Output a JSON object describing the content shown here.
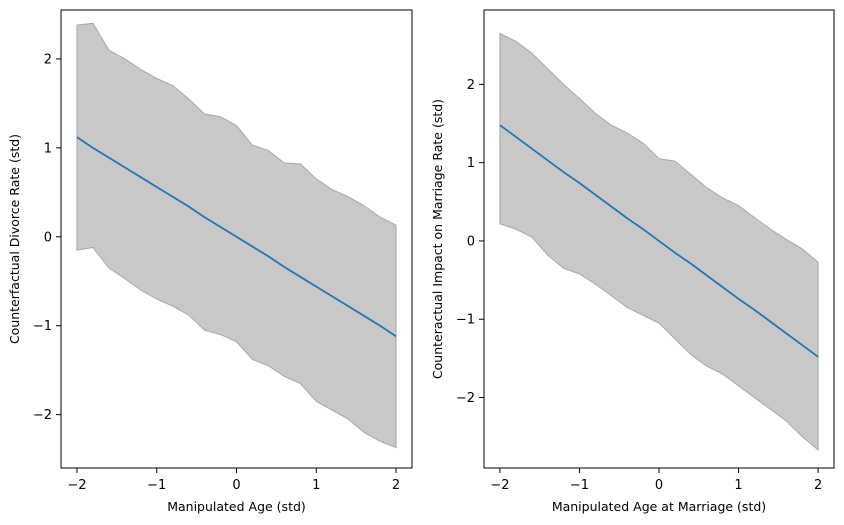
{
  "chart_data": [
    {
      "type": "line",
      "xlabel": "Manipulated Age (std)",
      "ylabel": "Counterfactual Divorce Rate (std)",
      "xlim": [
        -2.2,
        2.2
      ],
      "ylim": [
        -2.6,
        2.55
      ],
      "xticks": [
        -2,
        -1,
        0,
        1,
        2
      ],
      "yticks": [
        -2,
        -1,
        0,
        1,
        2
      ],
      "grid": false,
      "legend": "none",
      "colors": {
        "line": "#1f77b4",
        "band": "#c8c8c8"
      },
      "x": [
        -2.0,
        -1.8,
        -1.6,
        -1.4,
        -1.2,
        -1.0,
        -0.8,
        -0.6,
        -0.4,
        -0.2,
        0.0,
        0.2,
        0.4,
        0.6,
        0.8,
        1.0,
        1.2,
        1.4,
        1.6,
        1.8,
        2.0
      ],
      "series": [
        {
          "values": [
            1.12,
            1.0,
            0.89,
            0.78,
            0.67,
            0.56,
            0.45,
            0.34,
            0.22,
            0.11,
            0.0,
            -0.11,
            -0.22,
            -0.34,
            -0.45,
            -0.56,
            -0.67,
            -0.78,
            -0.89,
            -1.0,
            -1.12
          ],
          "upper": [
            2.38,
            2.4,
            2.1,
            2.0,
            1.88,
            1.78,
            1.7,
            1.55,
            1.38,
            1.35,
            1.25,
            1.03,
            0.97,
            0.83,
            0.82,
            0.65,
            0.53,
            0.45,
            0.35,
            0.22,
            0.13
          ],
          "lower": [
            -0.15,
            -0.12,
            -0.35,
            -0.47,
            -0.6,
            -0.7,
            -0.78,
            -0.88,
            -1.05,
            -1.1,
            -1.18,
            -1.38,
            -1.45,
            -1.57,
            -1.65,
            -1.85,
            -1.95,
            -2.05,
            -2.2,
            -2.3,
            -2.37
          ]
        }
      ]
    },
    {
      "type": "line",
      "xlabel": "Manipulated Age at Marriage (std)",
      "ylabel": "Counteractual Impact on Marriage Rate (std)",
      "xlim": [
        -2.2,
        2.2
      ],
      "ylim": [
        -2.9,
        2.95
      ],
      "xticks": [
        -2,
        -1,
        0,
        1,
        2
      ],
      "yticks": [
        -2,
        -1,
        0,
        1,
        2
      ],
      "grid": false,
      "legend": "none",
      "colors": {
        "line": "#1f77b4",
        "band": "#c8c8c8"
      },
      "x": [
        -2.0,
        -1.8,
        -1.6,
        -1.4,
        -1.2,
        -1.0,
        -0.8,
        -0.6,
        -0.4,
        -0.2,
        0.0,
        0.2,
        0.4,
        0.6,
        0.8,
        1.0,
        1.2,
        1.4,
        1.6,
        1.8,
        2.0
      ],
      "series": [
        {
          "values": [
            1.48,
            1.33,
            1.18,
            1.03,
            0.88,
            0.74,
            0.59,
            0.44,
            0.29,
            0.15,
            0.0,
            -0.15,
            -0.29,
            -0.44,
            -0.59,
            -0.74,
            -0.88,
            -1.03,
            -1.18,
            -1.33,
            -1.48
          ],
          "upper": [
            2.65,
            2.55,
            2.4,
            2.2,
            2.0,
            1.82,
            1.63,
            1.48,
            1.38,
            1.25,
            1.05,
            1.02,
            0.85,
            0.68,
            0.55,
            0.45,
            0.3,
            0.15,
            0.02,
            -0.1,
            -0.27
          ],
          "lower": [
            0.22,
            0.15,
            0.05,
            -0.18,
            -0.35,
            -0.42,
            -0.55,
            -0.7,
            -0.85,
            -0.95,
            -1.05,
            -1.25,
            -1.45,
            -1.6,
            -1.7,
            -1.85,
            -2.0,
            -2.15,
            -2.3,
            -2.5,
            -2.67
          ]
        }
      ]
    }
  ]
}
